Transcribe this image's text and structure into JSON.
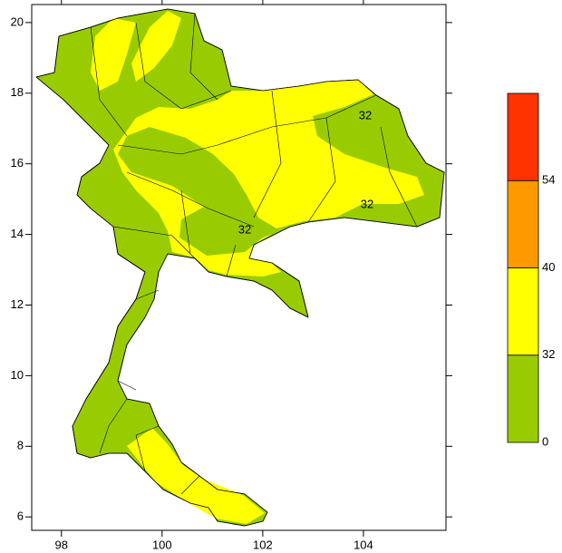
{
  "chart_data": {
    "type": "map",
    "xlim": [
      97.41,
      105.64
    ],
    "ylim": [
      5.62,
      20.51
    ],
    "xticks": [
      98,
      100,
      102,
      104
    ],
    "yticks": [
      6,
      8,
      10,
      12,
      14,
      16,
      18,
      20
    ],
    "colorbar": {
      "levels": [
        0,
        32,
        40,
        54
      ],
      "colors": [
        "#99cc00",
        "#ffff00",
        "#ff9900",
        "#ff3300"
      ]
    },
    "contour_labels": [
      "32",
      "32",
      "32"
    ]
  }
}
